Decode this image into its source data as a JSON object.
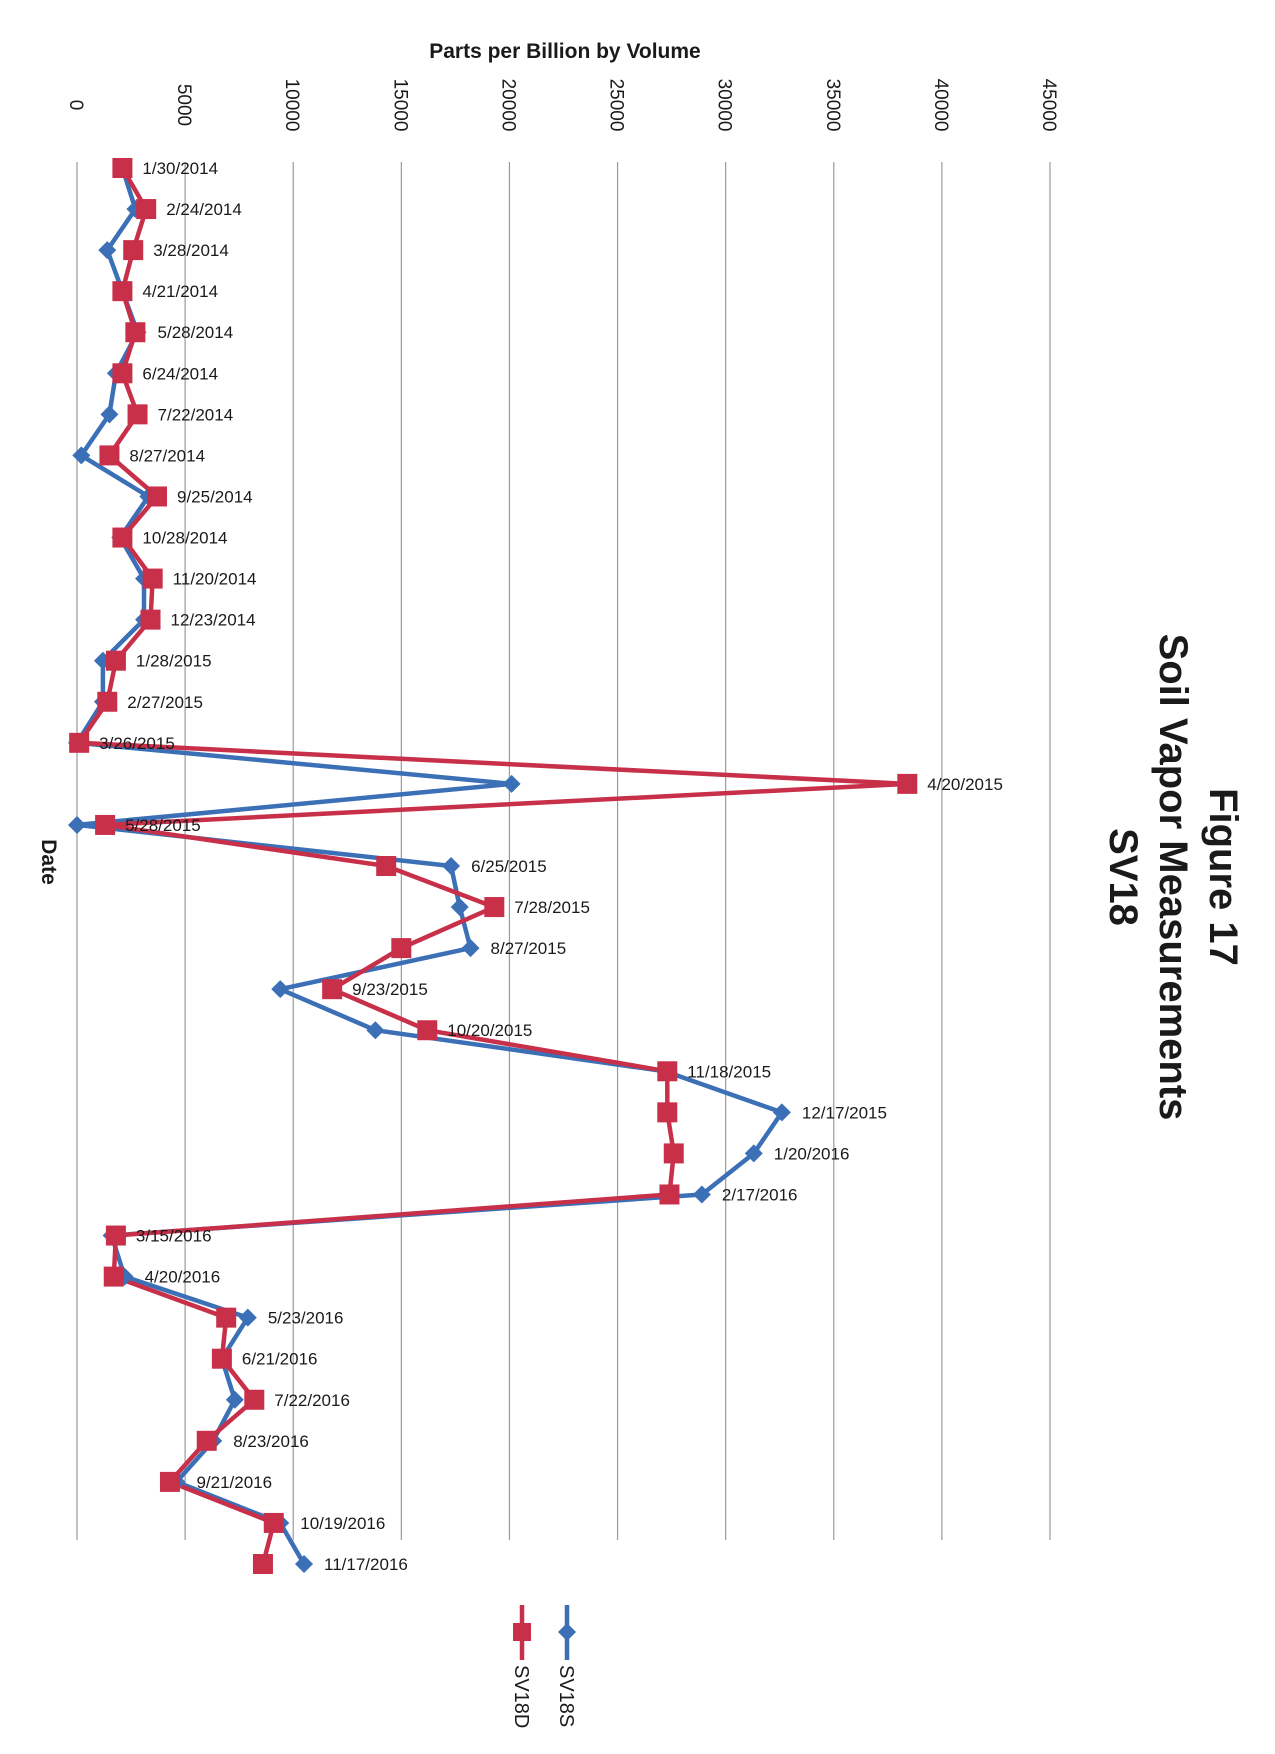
{
  "figure": {
    "title_line1": "Figure 17",
    "title_line2": "Soil Vapor Measurements",
    "title_line3": "SV18"
  },
  "colors": {
    "SV18S": "#3b6fb6",
    "SV18D": "#c8304a",
    "grid": "#9a9a9a"
  },
  "chart_data": {
    "type": "line",
    "orientation": "rotated-90",
    "xlabel": "Date",
    "ylabel": "Parts per Billion by Volume",
    "ylim": [
      0,
      45000
    ],
    "yticks": [
      "0",
      "5000",
      "10000",
      "15000",
      "20000",
      "25000",
      "30000",
      "35000",
      "40000",
      "45000"
    ],
    "grid": true,
    "legend_position": "bottom",
    "categories": [
      "1/30/2014",
      "2/24/2014",
      "3/28/2014",
      "4/21/2014",
      "5/28/2014",
      "6/24/2014",
      "7/22/2014",
      "8/27/2014",
      "9/25/2014",
      "10/28/2014",
      "11/20/2014",
      "12/23/2014",
      "1/28/2015",
      "2/27/2015",
      "3/26/2015",
      "4/20/2015",
      "5/28/2015",
      "6/25/2015",
      "7/28/2015",
      "8/27/2015",
      "9/23/2015",
      "10/20/2015",
      "11/18/2015",
      "12/17/2015",
      "1/20/2016",
      "2/17/2016",
      "3/15/2016",
      "4/20/2016",
      "5/23/2016",
      "6/21/2016",
      "7/22/2016",
      "8/23/2016",
      "9/21/2016",
      "10/19/2016",
      "11/17/2016"
    ],
    "series": [
      {
        "name": "SV18S",
        "marker": "diamond",
        "values": [
          2100,
          2700,
          1400,
          2100,
          2800,
          1800,
          1500,
          200,
          3300,
          2000,
          3100,
          3100,
          1200,
          1200,
          0,
          20100,
          0,
          17300,
          17700,
          18200,
          9400,
          13800,
          27200,
          32600,
          31300,
          28900,
          1600,
          2200,
          7900,
          6700,
          7300,
          6300,
          4600,
          9400,
          10500
        ]
      },
      {
        "name": "SV18D",
        "marker": "square",
        "values": [
          2100,
          3200,
          2600,
          2100,
          2700,
          2100,
          2800,
          1500,
          3700,
          2100,
          3500,
          3400,
          1800,
          1400,
          100,
          38400,
          1300,
          14300,
          19300,
          15000,
          11800,
          16200,
          27300,
          27300,
          27600,
          27400,
          1800,
          1700,
          6900,
          6700,
          8200,
          6000,
          4300,
          9100,
          8600
        ]
      }
    ]
  }
}
